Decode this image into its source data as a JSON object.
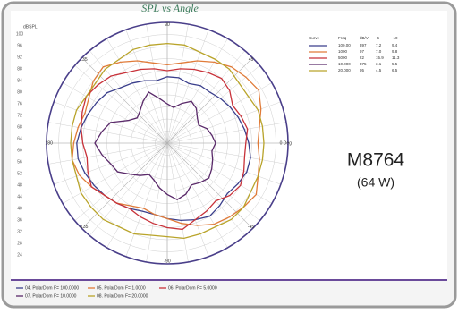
{
  "chart_data": {
    "type": "polar",
    "title": "SPL vs Angle",
    "left_scale": {
      "title": "dBSPL",
      "labels": [
        "100",
        "96",
        "92",
        "88",
        "84",
        "80",
        "76",
        "72",
        "68",
        "64",
        "60",
        "56",
        "52",
        "48",
        "44",
        "40",
        "36",
        "32",
        "28",
        "24"
      ]
    },
    "angles": [
      0,
      10,
      20,
      30,
      40,
      50,
      60,
      70,
      80,
      90,
      100,
      110,
      120,
      130,
      140,
      150,
      160,
      170,
      180,
      190,
      200,
      210,
      220,
      230,
      240,
      250,
      260,
      270,
      280,
      290,
      300,
      310,
      320,
      330,
      340,
      350
    ],
    "angle_ticks": [
      {
        "value": 0,
        "label": "0 Deg"
      },
      {
        "value": 45,
        "label": "45"
      },
      {
        "value": 90,
        "label": "90"
      },
      {
        "value": 135,
        "label": "135"
      },
      {
        "value": 180,
        "label": "180"
      },
      {
        "value": 225,
        "label": "-135"
      },
      {
        "value": 270,
        "label": "-90"
      },
      {
        "value": 315,
        "label": "-45"
      }
    ],
    "rlim": [
      0,
      40
    ],
    "rticks": [
      4,
      8,
      12,
      16,
      20,
      24,
      28,
      32,
      36,
      40
    ],
    "series": [
      {
        "name": "04. PolarDom F= 100.0000",
        "color": "#3b3f8c",
        "values": [
          27,
          26,
          25,
          24,
          23,
          22,
          22,
          21,
          22,
          22,
          21,
          22,
          23,
          24,
          26,
          27,
          28,
          29,
          30,
          30,
          29,
          28,
          27,
          26,
          25,
          24,
          24,
          25,
          26,
          27,
          28,
          27,
          26,
          27,
          28,
          28
        ]
      },
      {
        "name": "05. PolarDom F= 1.0000",
        "color": "#e07b39",
        "values": [
          30,
          31,
          33,
          35,
          34,
          33,
          31,
          29,
          27,
          26,
          27,
          29,
          31,
          33,
          32,
          30,
          29,
          30,
          31,
          32,
          31,
          29,
          27,
          26,
          24,
          23,
          24,
          25,
          27,
          29,
          31,
          32,
          33,
          34,
          32,
          31
        ]
      },
      {
        "name": "06. PolarDom F= 5.0000",
        "color": "#c8323a",
        "values": [
          26,
          27,
          26,
          25,
          27,
          28,
          27,
          26,
          25,
          24,
          25,
          26,
          27,
          29,
          30,
          31,
          30,
          29,
          28,
          27,
          28,
          29,
          27,
          26,
          25,
          26,
          27,
          28,
          29,
          27,
          26,
          25,
          27,
          28,
          27,
          26
        ]
      },
      {
        "name": "07. PolarDom F= 10.0000",
        "color": "#5a2a6a",
        "values": [
          16,
          15,
          14,
          12,
          13,
          15,
          16,
          14,
          12,
          13,
          15,
          18,
          16,
          14,
          13,
          15,
          20,
          22,
          24,
          22,
          20,
          19,
          16,
          14,
          12,
          13,
          15,
          17,
          19,
          18,
          16,
          17,
          18,
          17,
          16,
          15
        ]
      },
      {
        "name": "08. PolarDom F= 20.0000",
        "color": "#b9a42a",
        "values": [
          32,
          32,
          32,
          31,
          31,
          32,
          32,
          32,
          33,
          33,
          33,
          33,
          32,
          32,
          31,
          31,
          32,
          32,
          32,
          32,
          32,
          33,
          33,
          33,
          32,
          32,
          31,
          31,
          32,
          32,
          32,
          33,
          33,
          32,
          32,
          32
        ]
      }
    ],
    "legend_table": {
      "header": [
        "Curve",
        "Freq",
        "dB/V",
        "-6",
        "-10"
      ],
      "rows": [
        [
          "100.00",
          "397",
          "7.2",
          "9.4"
        ],
        [
          "1000",
          "97",
          "7.0",
          "9.8"
        ],
        [
          "5000",
          "22",
          "15.9",
          "11.3"
        ],
        [
          "10.000",
          "375",
          "3.1",
          "5.5"
        ],
        [
          "20.000",
          "95",
          "4.5",
          "6.5"
        ]
      ]
    },
    "annotations": [
      "M8764",
      "(64 W)"
    ]
  }
}
